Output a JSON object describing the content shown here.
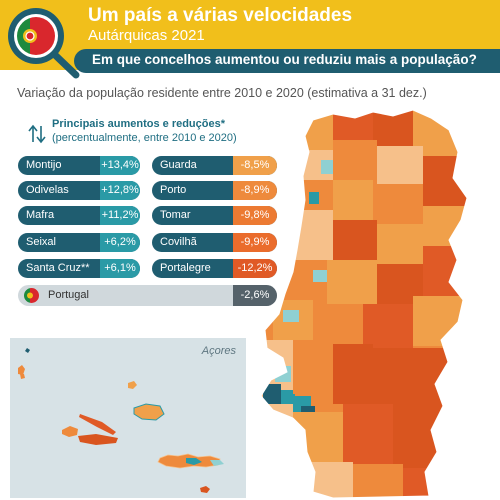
{
  "header": {
    "title": "Um país a várias velocidades",
    "subtitle": "Autárquicas 2021",
    "question": "Em que concelhos aumentou ou reduziu mais a população?"
  },
  "map_subtitle": "Variação da população residente entre 2010 e 2020 (estimativa a 31 dez.)",
  "legend": {
    "title": "Principais aumentos e reduções*",
    "note": "(percentualmente, entre 2010 e 2020)"
  },
  "increases": [
    {
      "name": "Montijo",
      "value": "+13,4%"
    },
    {
      "name": "Odivelas",
      "value": "+12,8%"
    },
    {
      "name": "Mafra",
      "value": "+11,2%"
    },
    {
      "name": "Seixal",
      "value": "+6,2%"
    },
    {
      "name": "Santa Cruz**",
      "value": "+6,1%"
    }
  ],
  "decreases": [
    {
      "name": "Guarda",
      "value": "-8,5%",
      "color": "#f0a04a"
    },
    {
      "name": "Porto",
      "value": "-8,9%",
      "color": "#ee8a3c"
    },
    {
      "name": "Tomar",
      "value": "-9,8%",
      "color": "#ec7a32"
    },
    {
      "name": "Covilhã",
      "value": "-9,9%",
      "color": "#ea6c2c"
    },
    {
      "name": "Portalegre",
      "value": "-12,2%",
      "color": "#e05a26"
    }
  ],
  "national": {
    "name": "Portugal",
    "value": "-2,6%"
  },
  "azores_label": "Açores",
  "colors": {
    "header": "#f1bf1b",
    "dark_teal": "#1f5d70",
    "teal": "#2a9aa6",
    "light_teal": "#8fd0d2",
    "orange": "#ee8a3c",
    "dark_orange": "#d9551f",
    "light_orange": "#f6c08a"
  }
}
